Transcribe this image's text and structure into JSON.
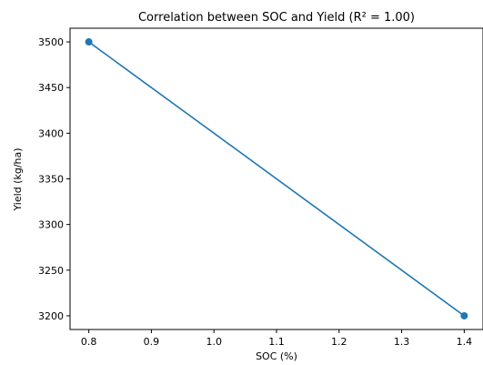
{
  "chart_data": {
    "type": "line",
    "title": "Correlation between SOC and Yield (R² = 1.00)",
    "xlabel": "SOC (%)",
    "ylabel": "Yield (kg/ha)",
    "xlim": [
      0.77,
      1.43
    ],
    "ylim": [
      3185,
      3515
    ],
    "x_ticks": [
      "0.8",
      "0.9",
      "1.0",
      "1.1",
      "1.2",
      "1.3",
      "1.4"
    ],
    "y_ticks": [
      "3200",
      "3250",
      "3300",
      "3350",
      "3400",
      "3450",
      "3500"
    ],
    "grid": false,
    "series": [
      {
        "x": [
          0.8,
          1.4
        ],
        "values": [
          3500,
          3200
        ],
        "marker": "circle",
        "color": "#1f77b4"
      }
    ]
  }
}
